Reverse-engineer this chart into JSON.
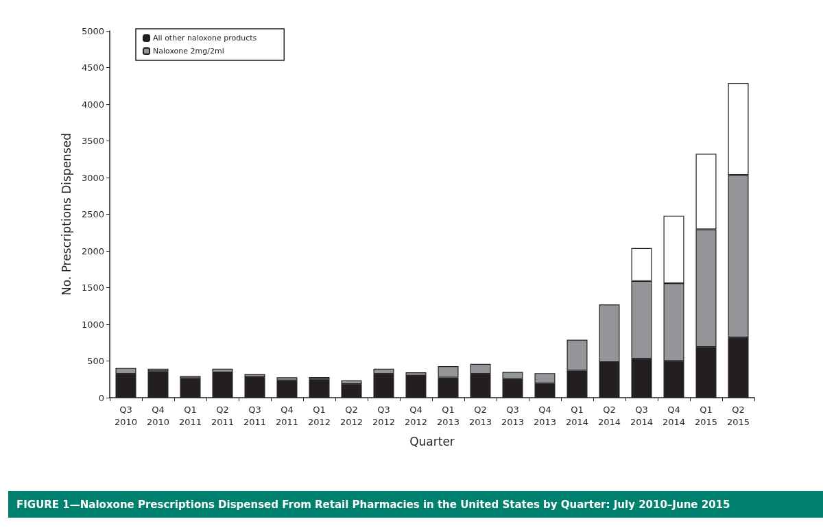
{
  "chart_data": {
    "type": "bar",
    "title": "FIGURE 1—Naloxone Prescriptions Dispensed From Retail Pharmacies in the United States by Quarter: July 2010–June 2015",
    "xlabel": "Quarter",
    "ylabel": "No. Prescriptions Dispensed",
    "categories": [
      "Q3\n2010",
      "Q4\n2010",
      "Q1\n2011",
      "Q2\n2011",
      "Q3\n2011",
      "Q4\n2011",
      "Q1\n2012",
      "Q2\n2012",
      "Q3\n2012",
      "Q4\n2012",
      "Q1\n2013",
      "Q2\n2013",
      "Q3\n2013",
      "Q4\n2013",
      "Q1\n2014",
      "Q2\n2014",
      "Q3\n2014",
      "Q4\n2014",
      "Q1\n2015",
      "Q2\n2015"
    ],
    "stacked": true,
    "series": [
      {
        "name": "All other naloxone products",
        "color": "#231f20",
        "values": [
          325,
          360,
          265,
          345,
          280,
          235,
          250,
          185,
          325,
          300,
          275,
          325,
          255,
          195,
          370,
          485,
          530,
          500,
          690,
          820
        ]
      },
      {
        "name": "Naloxone 2mg/2ml",
        "color": "#939598",
        "values": [
          80,
          35,
          30,
          50,
          40,
          42,
          30,
          50,
          70,
          45,
          155,
          135,
          95,
          140,
          420,
          785,
          1060,
          1060,
          1605,
          2215
        ]
      },
      {
        "color": "#ffffff",
        "values": [
          null,
          null,
          null,
          null,
          null,
          null,
          null,
          null,
          null,
          null,
          null,
          null,
          null,
          null,
          null,
          null,
          450,
          920,
          1030,
          1255
        ]
      }
    ],
    "ylim": [
      0,
      5000
    ],
    "yticks": [
      0,
      500,
      1000,
      1500,
      2000,
      2500,
      3000,
      3500,
      4000,
      4500,
      5000
    ],
    "grid": false,
    "legend": "top left"
  }
}
